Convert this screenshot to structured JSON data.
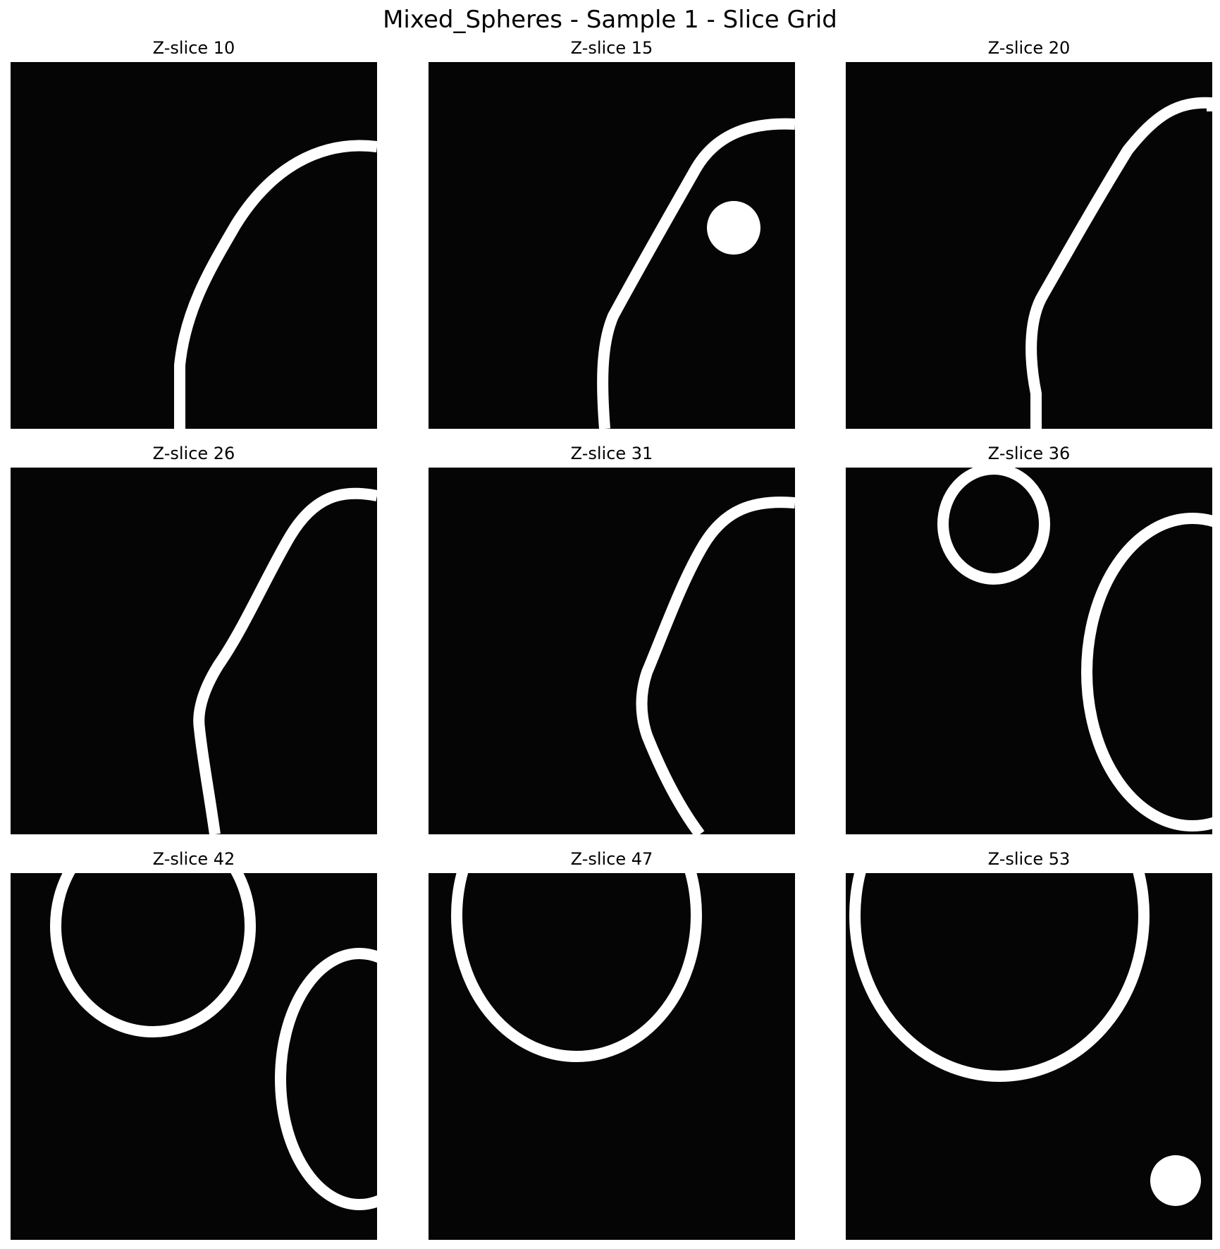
{
  "figure": {
    "title": "Mixed_Spheres - Sample 1 - Slice Grid"
  },
  "colors": {
    "background": "#050505",
    "foreground": "#ffffff",
    "page": "#ffffff"
  },
  "panels": [
    {
      "title": "Z-slice 10"
    },
    {
      "title": "Z-slice 15"
    },
    {
      "title": "Z-slice 20"
    },
    {
      "title": "Z-slice 26"
    },
    {
      "title": "Z-slice 31"
    },
    {
      "title": "Z-slice 36"
    },
    {
      "title": "Z-slice 42"
    },
    {
      "title": "Z-slice 47"
    },
    {
      "title": "Z-slice 53"
    }
  ]
}
